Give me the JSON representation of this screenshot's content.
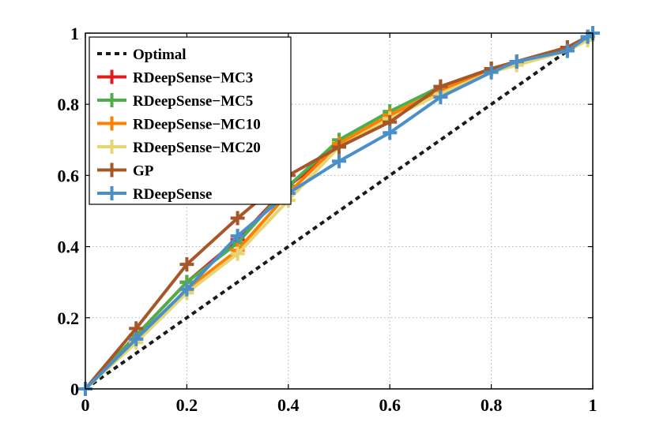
{
  "chart_data": {
    "type": "line",
    "title": "",
    "xlabel": "",
    "ylabel": "",
    "xlim": [
      0,
      1
    ],
    "ylim": [
      0,
      1
    ],
    "grid": true,
    "legend_position": "top-left",
    "x_ticks": [
      "0",
      "0.2",
      "0.4",
      "0.6",
      "0.8",
      "1"
    ],
    "y_ticks": [
      "0",
      "0.2",
      "0.4",
      "0.6",
      "0.8",
      "1"
    ],
    "series": [
      {
        "name": "Optimal",
        "color": "#1a1a1a",
        "style": "dashed",
        "marker": "none",
        "x": [
          0,
          1
        ],
        "y": [
          0,
          1
        ]
      },
      {
        "name": "RDeepSense−MC3",
        "color": "#e41a1c",
        "style": "solid",
        "marker": "plus",
        "x": [
          0,
          0.1,
          0.2,
          0.3,
          0.4,
          0.5,
          0.6,
          0.7,
          0.8,
          0.85,
          0.95,
          0.99,
          1.0
        ],
        "y": [
          0,
          0.15,
          0.3,
          0.42,
          0.57,
          0.68,
          0.76,
          0.84,
          0.9,
          0.92,
          0.96,
          0.99,
          1.0
        ]
      },
      {
        "name": "RDeepSense−MC5",
        "color": "#4daf4a",
        "style": "solid",
        "marker": "plus",
        "x": [
          0,
          0.1,
          0.2,
          0.3,
          0.4,
          0.5,
          0.6,
          0.7,
          0.8,
          0.85,
          0.95,
          0.99,
          1.0
        ],
        "y": [
          0,
          0.15,
          0.3,
          0.41,
          0.57,
          0.7,
          0.78,
          0.85,
          0.9,
          0.92,
          0.96,
          0.99,
          1.0
        ]
      },
      {
        "name": "RDeepSense−MC10",
        "color": "#ff7f00",
        "style": "solid",
        "marker": "plus",
        "x": [
          0,
          0.1,
          0.2,
          0.3,
          0.4,
          0.5,
          0.6,
          0.7,
          0.8,
          0.85,
          0.95,
          0.99,
          1.0
        ],
        "y": [
          0,
          0.14,
          0.28,
          0.39,
          0.55,
          0.69,
          0.77,
          0.84,
          0.9,
          0.92,
          0.96,
          0.99,
          1.0
        ]
      },
      {
        "name": "RDeepSense−MC20",
        "color": "#e6d570",
        "style": "solid",
        "marker": "plus",
        "x": [
          0,
          0.1,
          0.2,
          0.3,
          0.4,
          0.5,
          0.6,
          0.7,
          0.8,
          0.85,
          0.95,
          0.99,
          1.0
        ],
        "y": [
          0,
          0.13,
          0.27,
          0.38,
          0.53,
          0.68,
          0.76,
          0.83,
          0.89,
          0.91,
          0.95,
          0.98,
          1.0
        ]
      },
      {
        "name": "GP",
        "color": "#a65628",
        "style": "solid",
        "marker": "plus",
        "x": [
          0,
          0.1,
          0.2,
          0.3,
          0.4,
          0.5,
          0.6,
          0.7,
          0.8,
          0.85,
          0.95,
          0.99,
          1.0
        ],
        "y": [
          0,
          0.17,
          0.35,
          0.48,
          0.6,
          0.68,
          0.75,
          0.85,
          0.9,
          0.92,
          0.96,
          0.99,
          1.0
        ]
      },
      {
        "name": "RDeepSense",
        "color": "#4a8fc8",
        "style": "solid",
        "marker": "plus",
        "x": [
          0,
          0.1,
          0.2,
          0.3,
          0.4,
          0.5,
          0.6,
          0.7,
          0.8,
          0.85,
          0.95,
          0.99,
          1.0
        ],
        "y": [
          0,
          0.14,
          0.28,
          0.43,
          0.55,
          0.64,
          0.72,
          0.82,
          0.89,
          0.92,
          0.95,
          0.99,
          1.0
        ]
      }
    ]
  }
}
